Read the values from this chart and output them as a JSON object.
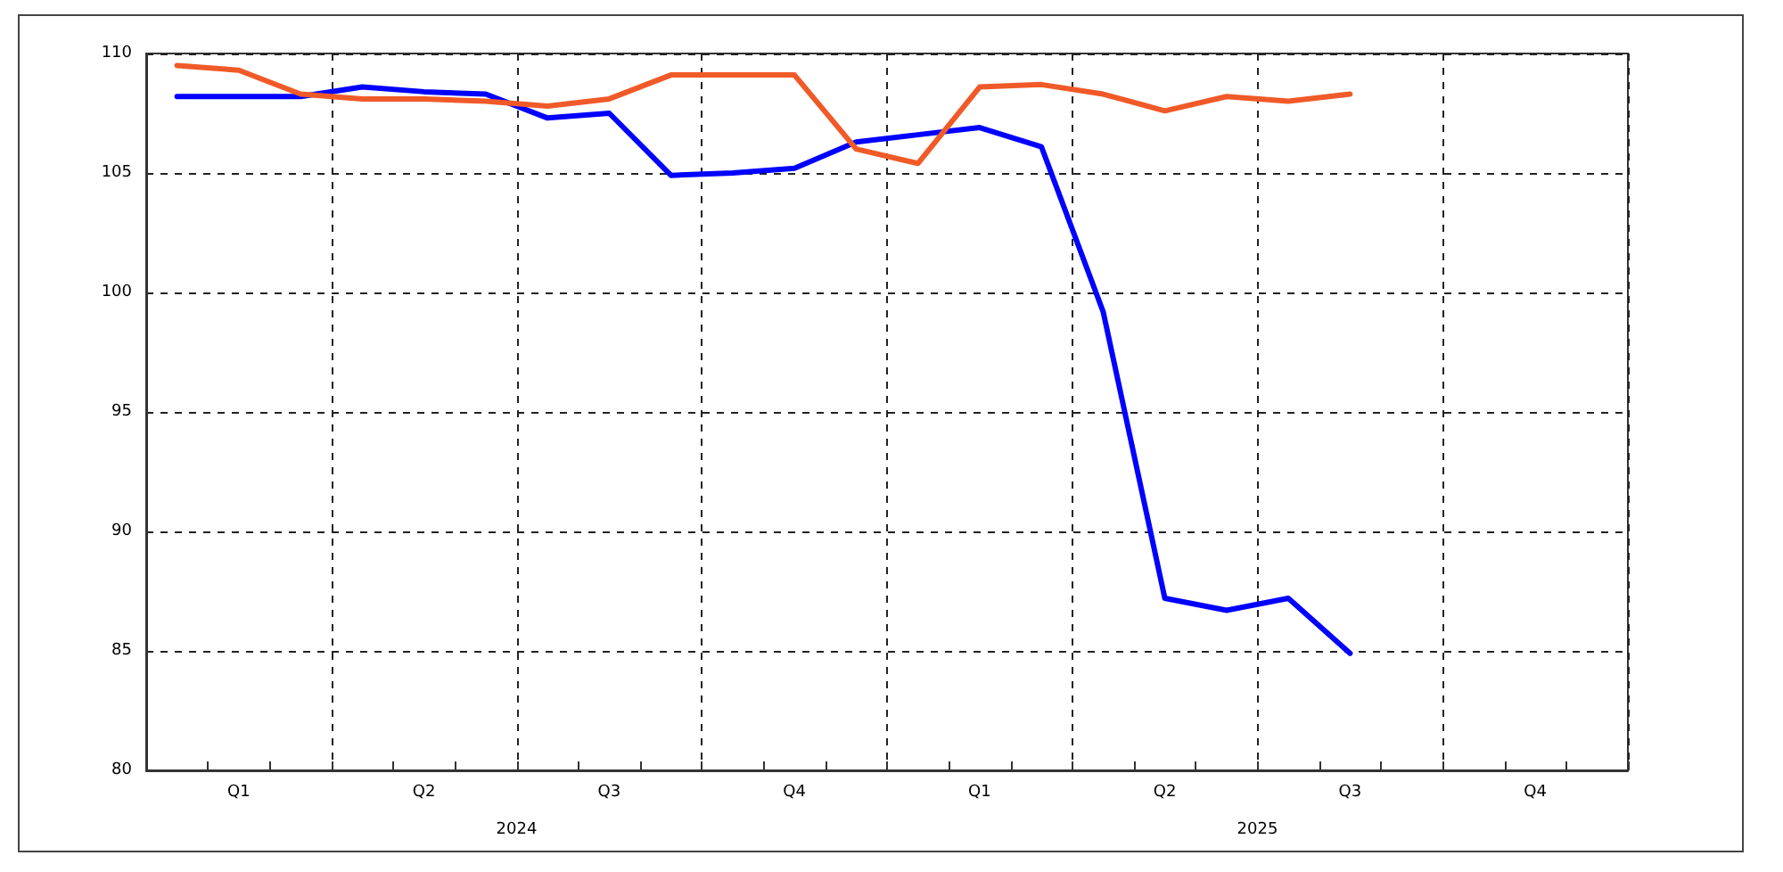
{
  "chart_data": {
    "type": "line",
    "categories": [
      null,
      "Q1",
      null,
      null,
      "Q2",
      null,
      null,
      "Q3",
      null,
      null,
      "Q4",
      null,
      null,
      "Q1",
      null,
      null,
      "Q2",
      null,
      null,
      "Q3",
      null,
      null,
      "Q4",
      null
    ],
    "series": [
      {
        "color": "#0000ff",
        "values": [
          108.2,
          108.2,
          108.2,
          108.6,
          108.4,
          108.3,
          107.3,
          107.5,
          104.9,
          105.0,
          105.2,
          106.3,
          106.6,
          106.9,
          106.1,
          99.2,
          87.2,
          86.7,
          87.2,
          84.9,
          null,
          null,
          null,
          null
        ]
      },
      {
        "color": "#f05a28",
        "values": [
          109.5,
          109.3,
          108.3,
          108.1,
          108.1,
          108.0,
          107.8,
          108.1,
          109.1,
          109.1,
          109.1,
          106.0,
          105.4,
          108.6,
          108.7,
          108.3,
          107.6,
          108.2,
          108.0,
          108.3,
          null,
          null,
          null,
          null
        ]
      }
    ],
    "ylim": [
      80,
      110
    ],
    "yticks": [
      80,
      85,
      90,
      95,
      100,
      105,
      110
    ],
    "grid": true,
    "marker": "none",
    "line_style": "solid",
    "annotations": [
      "2024",
      "2025"
    ]
  }
}
